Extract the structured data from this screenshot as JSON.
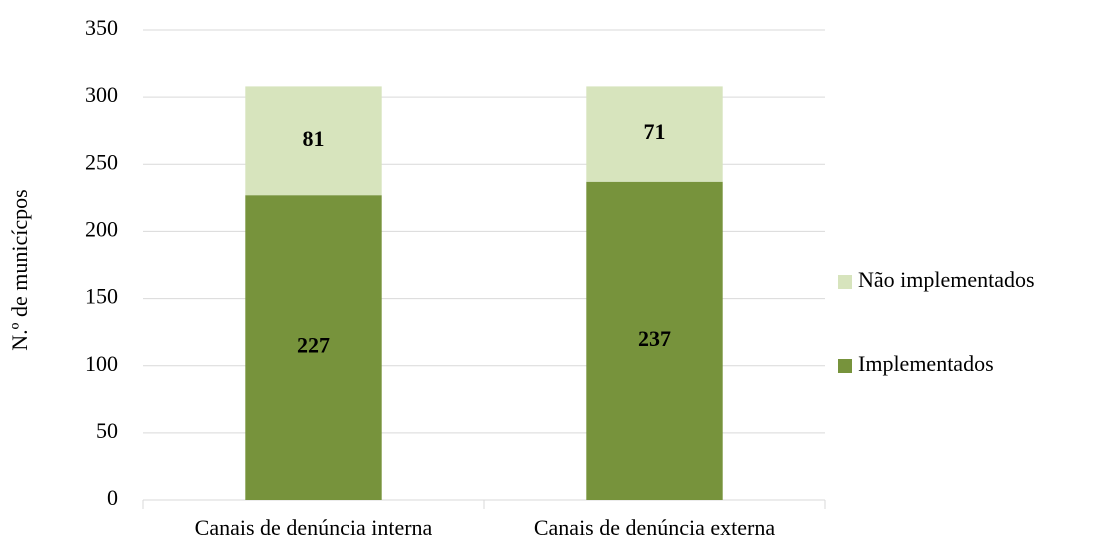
{
  "chart_data": {
    "type": "stacked_bar",
    "categories": [
      "Canais de denúncia interna",
      "Canais de denúncia externa"
    ],
    "series": [
      {
        "name": "Implementados",
        "color": "#77933c",
        "values": [
          227,
          237
        ]
      },
      {
        "name": "Não implementados",
        "color": "#d7e4bd",
        "values": [
          81,
          71
        ]
      }
    ],
    "y_label": "N.º de municícpos",
    "ylim": [
      0,
      350
    ],
    "yticks": [
      0,
      50,
      100,
      150,
      200,
      250,
      300,
      350
    ],
    "grid": true,
    "legend": "right"
  }
}
